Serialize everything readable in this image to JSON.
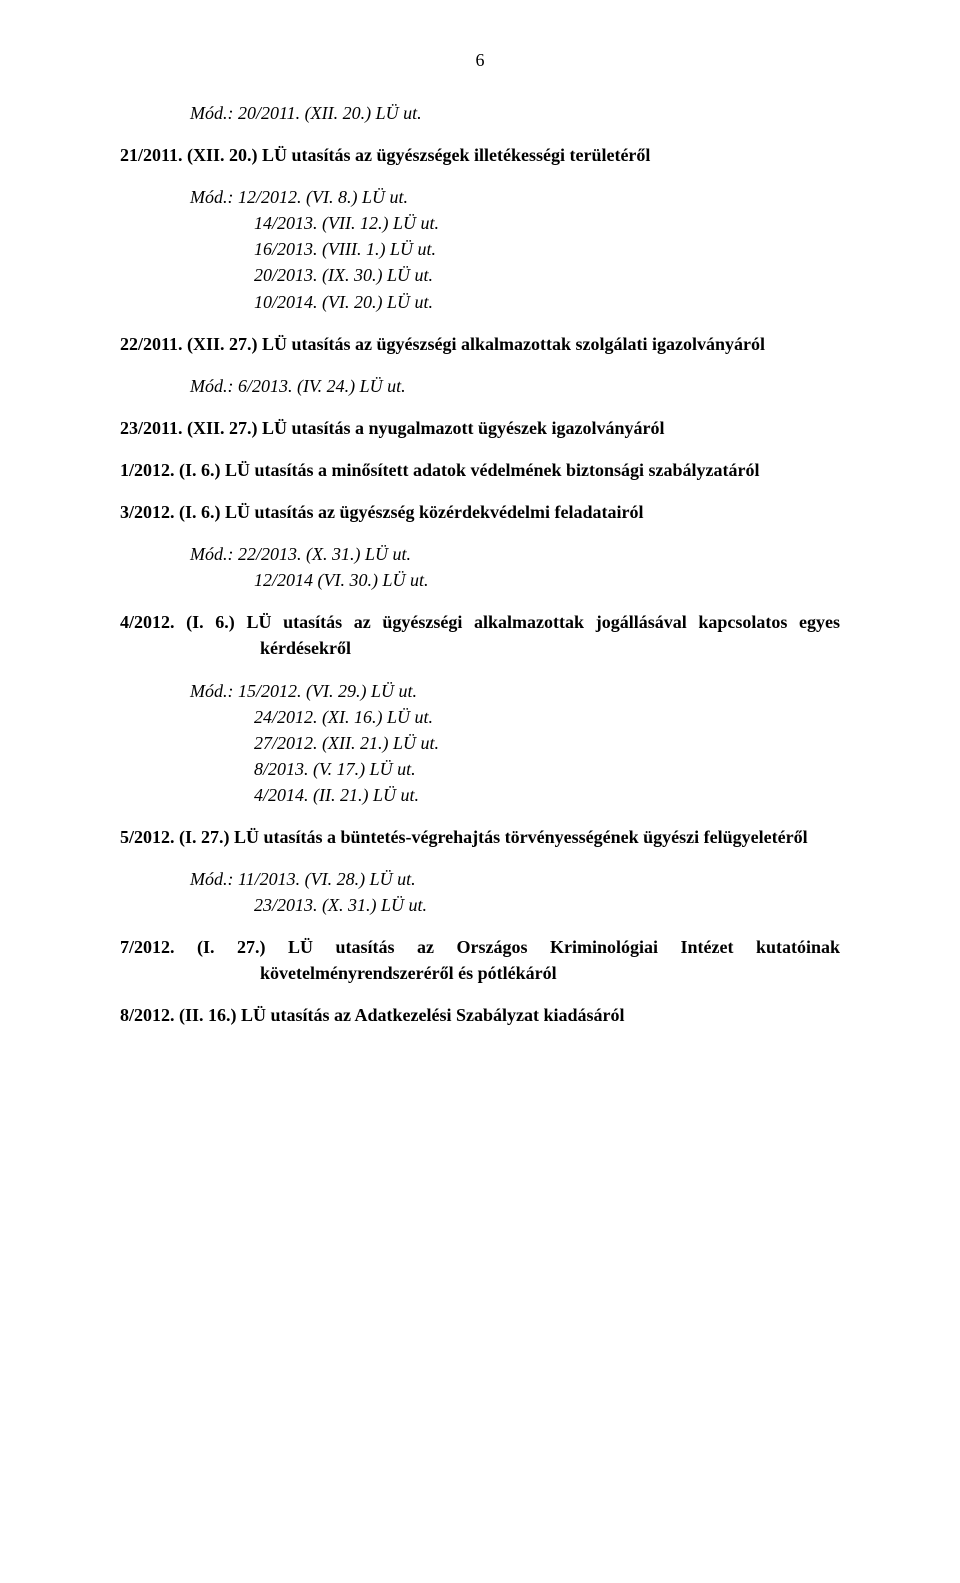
{
  "page_number": "6",
  "mod_label": "Mód.:",
  "entries": [
    {
      "type": "mod",
      "text": "Mód.: 20/2011. (XII. 20.) LÜ ut."
    },
    {
      "type": "entry",
      "text": "21/2011. (XII. 20.) LÜ utasítás az ügyészségek illetékességi területéről"
    },
    {
      "type": "mod-group",
      "first": "Mód.: 12/2012. (VI. 8.) LÜ ut.",
      "lines": [
        "14/2013. (VII. 12.) LÜ ut.",
        "16/2013. (VIII. 1.) LÜ ut.",
        "20/2013. (IX. 30.) LÜ ut.",
        "10/2014. (VI. 20.) LÜ ut."
      ]
    },
    {
      "type": "entry",
      "text": "22/2011. (XII. 27.) LÜ utasítás az ügyészségi alkalmazottak szolgálati igazolványáról"
    },
    {
      "type": "mod6",
      "text": "Mód.:   6/2013. (IV. 24.) LÜ ut."
    },
    {
      "type": "entry",
      "text": "23/2011. (XII. 27.) LÜ utasítás a nyugalmazott ügyészek igazolványáról"
    },
    {
      "type": "entry",
      "text": "1/2012. (I. 6.) LÜ utasítás a minősített adatok védelmének biztonsági szabályzatáról"
    },
    {
      "type": "entry",
      "text": "3/2012. (I. 6.) LÜ utasítás az ügyészség közérdekvédelmi feladatairól"
    },
    {
      "type": "mod-group",
      "first": "Mód.: 22/2013. (X. 31.) LÜ ut.",
      "lines": [
        "12/2014 (VI. 30.) LÜ ut."
      ]
    },
    {
      "type": "entry",
      "text": "4/2012. (I. 6.) LÜ utasítás az ügyészségi alkalmazottak jogállásával kapcsolatos egyes kérdésekről"
    },
    {
      "type": "mod-group",
      "first": "Mód.: 15/2012. (VI. 29.) LÜ ut.",
      "lines": [
        "24/2012. (XI. 16.) LÜ ut.",
        "27/2012. (XII. 21.) LÜ ut.",
        " 8/2013. (V. 17.) LÜ ut.",
        " 4/2014. (II. 21.) LÜ ut."
      ]
    },
    {
      "type": "entry",
      "text": "5/2012. (I. 27.) LÜ utasítás a büntetés-végrehajtás törvényességének ügyészi felügyeletéről"
    },
    {
      "type": "mod-group",
      "first": "Mód.: 11/2013. (VI. 28.) LÜ ut.",
      "lines": [
        "23/2013. (X. 31.) LÜ ut."
      ]
    },
    {
      "type": "entry",
      "text": "7/2012. (I. 27.) LÜ utasítás az Országos Kriminológiai Intézet kutatóinak követelményrendszeréről és pótlékáról"
    },
    {
      "type": "entry8",
      "text": "8/2012. (II. 16.) LÜ utasítás az Adatkezelési Szabályzat kiadásáról"
    }
  ]
}
